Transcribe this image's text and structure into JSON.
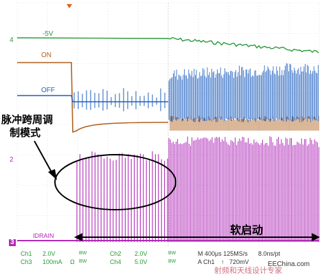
{
  "colors": {
    "background": "#ffffff",
    "grid": "#d0d0d0",
    "ch1": "#2a9a3c",
    "ch2": "#b0601e",
    "ch3": "#1e5fbf",
    "ch4": "#b02ab8",
    "marker": "#e06010",
    "annotation": "#000000",
    "watermark": "#d07080"
  },
  "traces": {
    "ch1_label": "-5V",
    "ch2_label": "ON",
    "ch3_label": "OFF",
    "ch4_label": "IDRAIN",
    "ch1_marker": "4",
    "ch4_marker": "2",
    "ch3_marker": "3"
  },
  "annotations": {
    "pwm_line1": "脉冲跨周调",
    "pwm_line2": "制模式",
    "soft_start": "软启动"
  },
  "readout": {
    "row1": {
      "ch1": "Ch1",
      "ch1_scale": "2.0V",
      "ch1_bw": "BW",
      "ch2": "Ch2",
      "ch2_scale": "2.0V",
      "ch2_bw": "BW",
      "timebase": "M 400μs 125MS/s",
      "sample": "8.0ns/pt"
    },
    "row2": {
      "ch3": "Ch3",
      "ch3_scale": "100mA",
      "ch3_unit": "Ω",
      "ch3_bw": "BW",
      "ch4": "Ch4",
      "ch4_scale": "5.0V",
      "ch4_bw": "BW",
      "trigger": "A Ch1",
      "trigger_arrow": "↑",
      "trigger_level": "720mV"
    }
  },
  "watermark": {
    "site": "EEChina.com",
    "cn_text": "射频和天线设计专家"
  }
}
